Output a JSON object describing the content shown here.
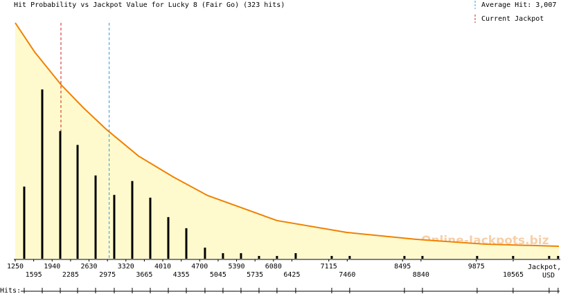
{
  "chart_data": {
    "type": "bar",
    "title": "Hit Probability vs Jackpot Value for Lucky 8 (Fair Go) (323 hits)",
    "x": [
      1418,
      1755,
      2092,
      2416,
      2753,
      3102,
      3439,
      3776,
      4113,
      4450,
      4799,
      5136,
      5473,
      5810,
      6146,
      6496,
      7170,
      7506,
      8530,
      8867,
      9890,
      10563,
      11237,
      11405
    ],
    "values": [
      26,
      61,
      46,
      41,
      30,
      23,
      28,
      22,
      15,
      11,
      4,
      2,
      2,
      1,
      1,
      2,
      1,
      1,
      1,
      1,
      1,
      1,
      1,
      1
    ],
    "color": "#000000",
    "curve": {
      "x": [
        1250,
        1613,
        2105,
        2519,
        2960,
        3556,
        4203,
        4851,
        6146,
        7442,
        8737,
        10032,
        11420
      ],
      "values": [
        85,
        74.5,
        62.75,
        54.5,
        46.5,
        37,
        29.5,
        22.75,
        13.75,
        9.5,
        7,
        5.25,
        4.5
      ],
      "color": "#f08000",
      "fill": "#fffacd"
    },
    "average_hit": {
      "value": 3007,
      "label": "Average Hit: 3,007",
      "color": "#3399dd"
    },
    "current_jackpot": {
      "value": 2105,
      "label": "Current Jackpot",
      "color": "#cc2222"
    },
    "xlim": [
      1250,
      11420
    ],
    "ylim": [
      0,
      85
    ],
    "xticks": [
      1250,
      1595,
      1940,
      2285,
      2630,
      2975,
      3320,
      3665,
      4010,
      4355,
      4700,
      5045,
      5390,
      5735,
      6080,
      6425,
      7115,
      7460,
      8495,
      8840,
      9875,
      10565
    ],
    "x_label": [
      "Jackpot,",
      "USD"
    ],
    "rug_label": "Hits:",
    "watermark": "Online-Jackpots.biz"
  }
}
